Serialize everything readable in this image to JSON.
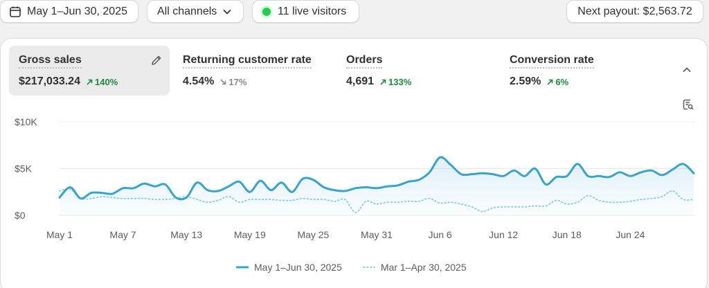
{
  "toolbar": {
    "date_range": "May 1–Jun 30, 2025",
    "channels": "All channels",
    "live_visitors": "11 live visitors",
    "next_payout": "Next payout: $2,563.72"
  },
  "metrics": [
    {
      "label": "Gross sales",
      "value": "$217,033.24",
      "change": "140%",
      "direction": "up"
    },
    {
      "label": "Returning customer rate",
      "value": "4.54%",
      "change": "17%",
      "direction": "down"
    },
    {
      "label": "Orders",
      "value": "4,691",
      "change": "133%",
      "direction": "up"
    },
    {
      "label": "Conversion rate",
      "value": "2.59%",
      "change": "6%",
      "direction": "up"
    }
  ],
  "colors": {
    "current": "#36a3d0",
    "previous": "#8fd0e8",
    "up": "#1a8a3c",
    "down": "#8a8a8a",
    "live": "#1fd147"
  },
  "chart_data": {
    "type": "line",
    "y_ticks": [
      "$10K",
      "$5K",
      "$0"
    ],
    "ylim": [
      0,
      10000
    ],
    "x_tick_labels": [
      "May 1",
      "May 7",
      "May 13",
      "May 19",
      "May 25",
      "May 31",
      "Jun 6",
      "Jun 12",
      "Jun 18",
      "Jun 24"
    ],
    "x_tick_index": [
      0,
      6,
      12,
      18,
      24,
      30,
      36,
      42,
      48,
      54
    ],
    "grid": true,
    "legend_position": "bottom",
    "series": [
      {
        "name": "May 1–Jun 30, 2025",
        "style": "solid",
        "values": [
          1900,
          3000,
          1800,
          2400,
          2400,
          2300,
          2900,
          2900,
          3400,
          3100,
          3300,
          1900,
          1900,
          3500,
          2700,
          2600,
          3100,
          3600,
          2500,
          3700,
          2700,
          3500,
          2500,
          3900,
          3800,
          3000,
          2700,
          2600,
          2900,
          3000,
          2900,
          3100,
          3200,
          3600,
          3800,
          4600,
          6200,
          5400,
          4400,
          4400,
          4500,
          4400,
          4200,
          4800,
          4200,
          5000,
          3300,
          4100,
          4200,
          5500,
          4200,
          4200,
          4100,
          4600,
          4200,
          4600,
          4800,
          4300,
          4900,
          5500,
          4500
        ]
      },
      {
        "name": "Mar 1–Apr 30, 2025",
        "style": "dotted",
        "values": [
          2600,
          2800,
          1800,
          1800,
          2000,
          1900,
          1800,
          1800,
          1800,
          1700,
          1700,
          1800,
          2000,
          1700,
          1400,
          1600,
          2000,
          1400,
          1700,
          1700,
          1700,
          1600,
          1600,
          1800,
          1700,
          1700,
          1500,
          1700,
          300,
          1500,
          1200,
          1400,
          1400,
          1500,
          1500,
          1800,
          1300,
          1400,
          1200,
          900,
          400,
          800,
          900,
          900,
          900,
          1000,
          1000,
          1600,
          1200,
          1400,
          2100,
          1600,
          1400,
          1400,
          1500,
          1700,
          1800,
          2000,
          2600,
          1700,
          1700
        ]
      }
    ]
  }
}
